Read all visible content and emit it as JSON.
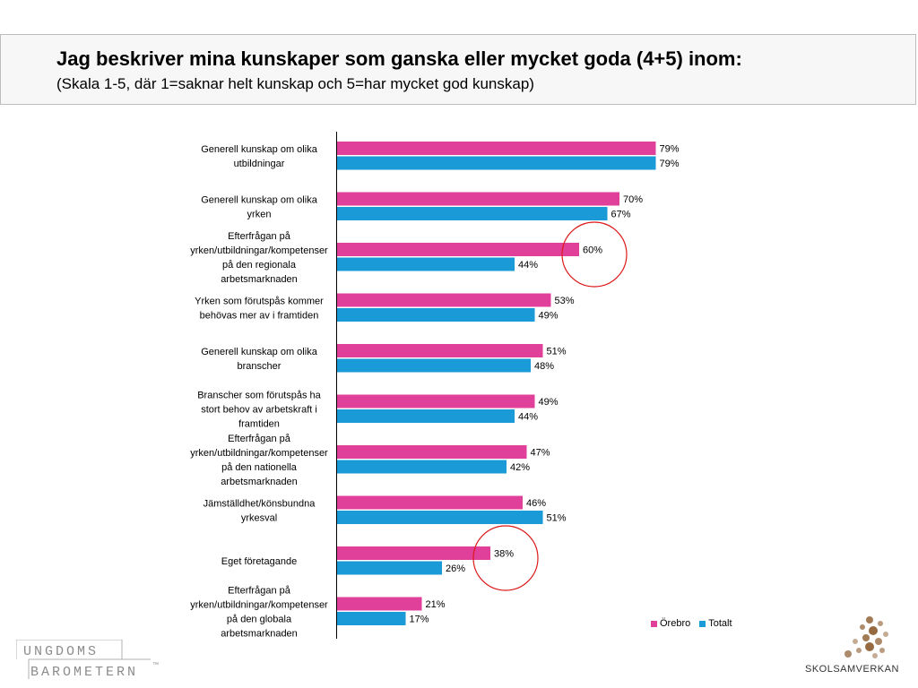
{
  "header": {
    "title": "Jag beskriver mina kunskaper som ganska eller mycket goda (4+5) inom:",
    "subtitle": "(Skala 1-5, där 1=saknar helt kunskap och 5=har mycket god kunskap)"
  },
  "colors": {
    "orebro": "#e0409a",
    "totalt": "#1a9ad6",
    "highlight_circle": "#dd1a1a"
  },
  "chart_data": {
    "type": "bar",
    "orientation": "horizontal",
    "categories": [
      "Generell kunskap om olika utbildningar",
      "Generell kunskap om olika yrken",
      "Efterfrågan på yrken/utbildningar/kompetenser på den regionala arbetsmarknaden",
      "Yrken som förutspås kommer behövas mer av i framtiden",
      "Generell kunskap om olika branscher",
      "Branscher som förutspås ha stort behov av arbetskraft i framtiden",
      "Efterfrågan på yrken/utbildningar/kompetenser på den nationella arbetsmarknaden",
      "Jämställdhet/könsbundna yrkesval",
      "Eget företagande",
      "Efterfrågan på yrken/utbildningar/kompetenser på den globala arbetsmarknaden"
    ],
    "category_label_lines": [
      [
        "Generell kunskap om olika",
        "utbildningar"
      ],
      [
        "Generell kunskap om olika",
        "yrken"
      ],
      [
        "Efterfrågan på",
        "yrken/utbildningar/kompetenser",
        "på den regionala",
        "arbetsmarknaden"
      ],
      [
        "Yrken som förutspås kommer",
        "behövas mer av i framtiden"
      ],
      [
        "Generell kunskap om olika",
        "branscher"
      ],
      [
        "Branscher som förutspås ha",
        "stort behov av arbetskraft i",
        "framtiden"
      ],
      [
        "Efterfrågan på",
        "yrken/utbildningar/kompetenser",
        "på den nationella",
        "arbetsmarknaden"
      ],
      [
        "Jämställdhet/könsbundna",
        "yrkesval"
      ],
      [
        "Eget företagande"
      ],
      [
        "Efterfrågan på",
        "yrken/utbildningar/kompetenser",
        "på den globala",
        "arbetsmarknaden"
      ]
    ],
    "series": [
      {
        "name": "Örebro",
        "values": [
          79,
          70,
          60,
          53,
          51,
          49,
          47,
          46,
          38,
          21
        ]
      },
      {
        "name": "Totalt",
        "values": [
          79,
          67,
          44,
          49,
          48,
          44,
          42,
          51,
          26,
          17
        ]
      }
    ],
    "value_labels": {
      "orebro": [
        "79%",
        "70%",
        "60%",
        "53%",
        "51%",
        "49%",
        "47%",
        "46%",
        "38%",
        "21%"
      ],
      "totalt": [
        "79%",
        "67%",
        "44%",
        "49%",
        "48%",
        "44%",
        "42%",
        "51%",
        "26%",
        "17%"
      ]
    },
    "unit": "%",
    "xlim": [
      0,
      100
    ],
    "grid": false,
    "legend_position": "bottom-right",
    "highlighted_categories": [
      "Efterfrågan på yrken/utbildningar/kompetenser på den regionala arbetsmarknaden",
      "Eget företagande"
    ]
  },
  "legend": {
    "orebro_label": "Örebro",
    "totalt_label": "Totalt"
  },
  "logos": {
    "ungdomsbarometern_line1": "UNGDOMS",
    "ungdomsbarometern_line2": "BAROMETERN",
    "ungdomsbarometern_tm": "™",
    "skolsamverkan": "SKOLSAMVERKAN"
  }
}
